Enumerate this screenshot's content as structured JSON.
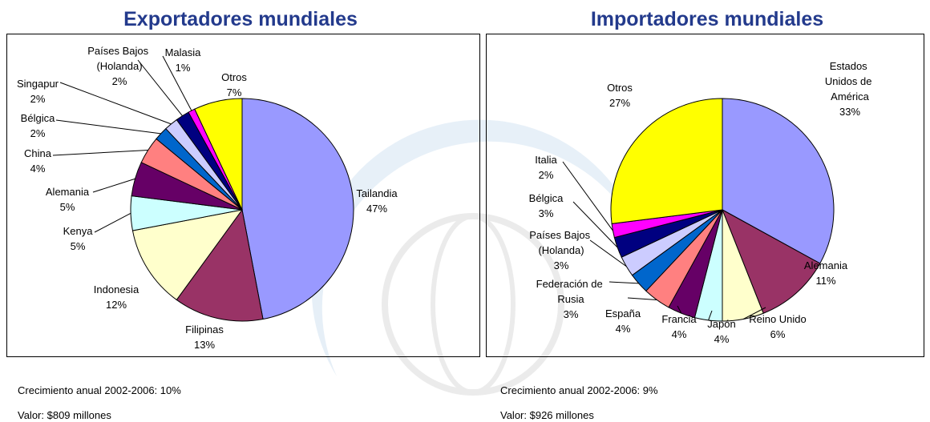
{
  "chart_data": [
    {
      "type": "pie",
      "title": "Exportadores mundiales",
      "categories": [
        "Tailandia",
        "Filipinas",
        "Indonesia",
        "Kenya",
        "Alemania",
        "China",
        "Bélgica",
        "Singapur",
        "Países Bajos (Holanda)",
        "Malasia",
        "Otros"
      ],
      "values": [
        47,
        13,
        12,
        5,
        5,
        4,
        2,
        2,
        2,
        1,
        7
      ],
      "value_labels": [
        "47%",
        "13%",
        "12%",
        "5%",
        "5%",
        "4%",
        "2%",
        "2%",
        "2%",
        "1%",
        "7%"
      ],
      "colors": [
        "#9999ff",
        "#993366",
        "#ffffcc",
        "#ccffff",
        "#660066",
        "#ff8080",
        "#0066cc",
        "#ccccff",
        "#000080",
        "#ff00ff",
        "#ffff00"
      ],
      "notes": [
        "Crecimiento anual 2002-2006: 10%",
        "Valor: $809 millones"
      ]
    },
    {
      "type": "pie",
      "title": "Importadores mundiales",
      "categories": [
        "Estados Unidos de América",
        "Alemania",
        "Reino Unido",
        "Japón",
        "Francia",
        "España",
        "Federación de Rusia",
        "Países Bajos (Holanda)",
        "Bélgica",
        "Italia",
        "Otros"
      ],
      "values": [
        33,
        11,
        6,
        4,
        4,
        4,
        3,
        3,
        3,
        2,
        27
      ],
      "value_labels": [
        "33%",
        "11%",
        "6%",
        "4%",
        "4%",
        "4%",
        "3%",
        "3%",
        "3%",
        "2%",
        "27%"
      ],
      "colors": [
        "#9999ff",
        "#993366",
        "#ffffcc",
        "#ccffff",
        "#660066",
        "#ff8080",
        "#0066cc",
        "#ccccff",
        "#000080",
        "#ff00ff",
        "#ffff00"
      ],
      "notes": [
        "Crecimiento anual 2002-2006: 9%",
        "Valor: $926 millones"
      ]
    }
  ]
}
